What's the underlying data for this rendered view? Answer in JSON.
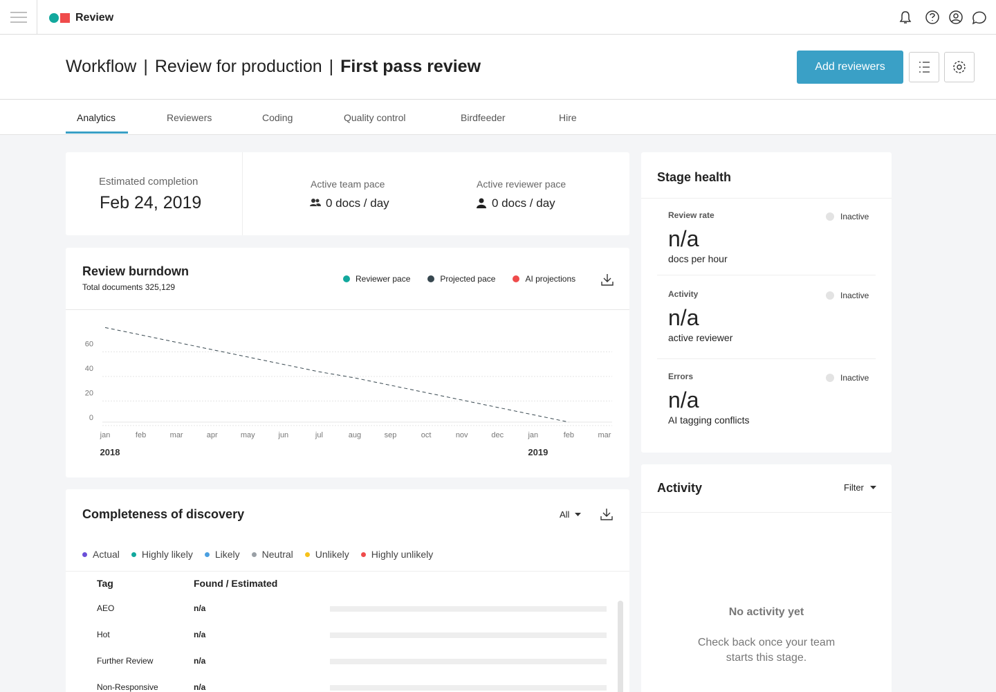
{
  "app": {
    "name": "Review"
  },
  "header": {
    "breadcrumb": [
      "Workflow",
      "Review for production",
      "First pass review"
    ],
    "separator": "|",
    "button": "Add reviewers"
  },
  "tabs": [
    "Analytics",
    "Reviewers",
    "Coding",
    "Quality control",
    "Birdfeeder",
    "Hire"
  ],
  "summary": {
    "estimated_completion": {
      "label": "Estimated completion",
      "value": "Feb 24, 2019"
    },
    "team_pace": {
      "label": "Active team pace",
      "value": "0 docs / day"
    },
    "reviewer_pace": {
      "label": "Active reviewer pace",
      "value": "0 docs / day"
    }
  },
  "chart_data": {
    "type": "line",
    "title": "Review burndown",
    "subtitle": "Total documents 325,129",
    "categories": [
      "jan",
      "feb",
      "mar",
      "apr",
      "may",
      "jun",
      "jul",
      "aug",
      "sep",
      "oct",
      "nov",
      "dec",
      "jan",
      "feb",
      "mar"
    ],
    "years": [
      "2018",
      "2019"
    ],
    "series": [
      {
        "name": "Reviewer pace",
        "color": "#12a89d",
        "values": [
          null,
          null,
          null,
          null,
          null,
          null,
          null,
          null,
          null,
          null,
          null,
          null,
          null,
          null,
          null
        ]
      },
      {
        "name": "Projected pace",
        "color": "#37474f",
        "dashed": true,
        "values": [
          77,
          71,
          65,
          59,
          53,
          47,
          41,
          36,
          30,
          24,
          18,
          12,
          6,
          0,
          null
        ]
      },
      {
        "name": "AI projections",
        "color": "#ef4b4b",
        "values": [
          null,
          null,
          null,
          null,
          null,
          null,
          null,
          null,
          null,
          null,
          null,
          null,
          null,
          null,
          null
        ]
      }
    ],
    "ylim": [
      0,
      80
    ],
    "yticks": [
      0,
      20,
      40,
      60
    ],
    "grid": true
  },
  "completeness": {
    "title": "Completeness of discovery",
    "filter": "All",
    "legend": [
      {
        "name": "Actual",
        "color": "#6b4fd8"
      },
      {
        "name": "Highly likely",
        "color": "#12a89d"
      },
      {
        "name": "Likely",
        "color": "#4a9fe0"
      },
      {
        "name": "Neutral",
        "color": "#9aa0a6"
      },
      {
        "name": "Unlikely",
        "color": "#f7c21b"
      },
      {
        "name": "Highly unlikely",
        "color": "#ef4b4b"
      }
    ],
    "columns": [
      "Tag",
      "Found / Estimated"
    ],
    "rows": [
      [
        "AEO",
        "n/a"
      ],
      [
        "Hot",
        "n/a"
      ],
      [
        "Further Review",
        "n/a"
      ],
      [
        "Non-Responsive",
        "n/a"
      ]
    ]
  },
  "stage_health": {
    "title": "Stage health",
    "metrics": [
      {
        "label": "Review rate",
        "status": "Inactive",
        "value": "n/a",
        "unit": "docs per hour"
      },
      {
        "label": "Activity",
        "status": "Inactive",
        "value": "n/a",
        "unit": "active reviewer"
      },
      {
        "label": "Errors",
        "status": "Inactive",
        "value": "n/a",
        "unit": "AI tagging conflicts"
      }
    ]
  },
  "activity": {
    "title": "Activity",
    "filter": "Filter",
    "empty_title": "No activity yet",
    "empty_text": "Check back once your team starts this stage."
  }
}
